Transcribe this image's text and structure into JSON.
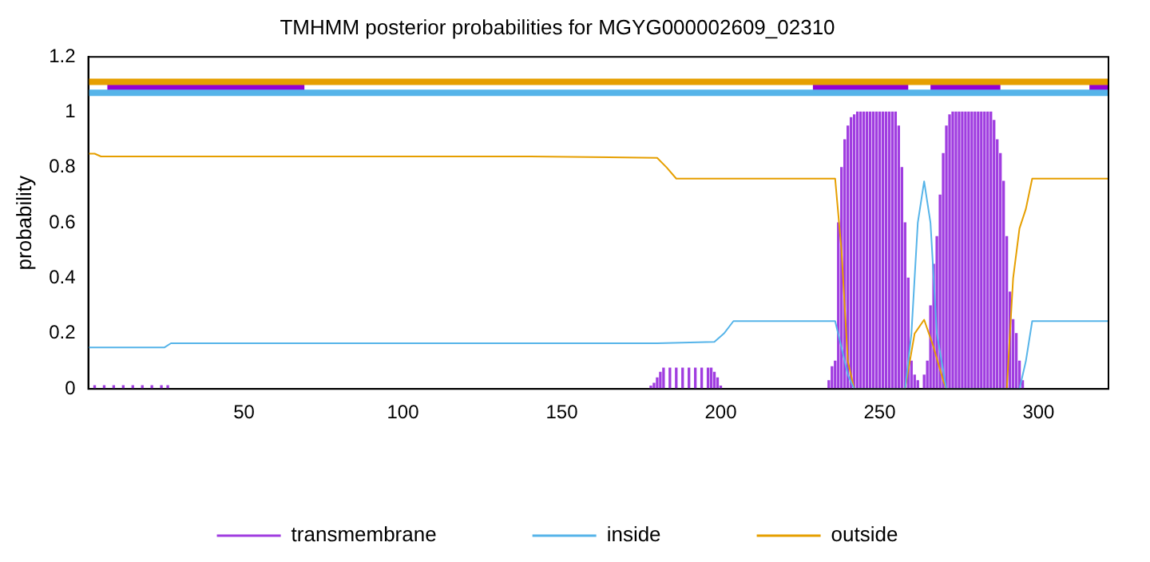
{
  "chart_data": {
    "type": "line",
    "title": "TMHMM posterior probabilities for MGYG000002609_02310",
    "ylabel": "probability",
    "xlim": [
      1,
      322
    ],
    "ylim": [
      0,
      1.2
    ],
    "xticks": [
      50,
      100,
      150,
      200,
      250,
      300
    ],
    "yticks": [
      0,
      0.2,
      0.4,
      0.6,
      0.8,
      1,
      1.2
    ],
    "grid": false,
    "legend": "bottom",
    "marker": "none",
    "line_style": "solid",
    "series": [
      {
        "name": "transmembrane",
        "type": "bar",
        "color": "#a03de0",
        "x": [
          3,
          6,
          9,
          12,
          15,
          18,
          21,
          24,
          26,
          178,
          179,
          180,
          181,
          182,
          184,
          186,
          188,
          190,
          192,
          194,
          196,
          197,
          198,
          199,
          200,
          234,
          235,
          236,
          237,
          238,
          239,
          240,
          241,
          242,
          243,
          244,
          245,
          246,
          247,
          248,
          249,
          250,
          251,
          252,
          253,
          254,
          255,
          256,
          257,
          258,
          259,
          260,
          261,
          262,
          264,
          265,
          266,
          267,
          268,
          269,
          270,
          271,
          272,
          273,
          274,
          275,
          276,
          277,
          278,
          279,
          280,
          281,
          282,
          283,
          284,
          285,
          286,
          287,
          288,
          289,
          290,
          291,
          292,
          293,
          294,
          295
        ],
        "values": [
          0.012,
          0.012,
          0.012,
          0.012,
          0.012,
          0.012,
          0.012,
          0.012,
          0.012,
          0.01,
          0.02,
          0.04,
          0.06,
          0.075,
          0.075,
          0.075,
          0.075,
          0.075,
          0.075,
          0.075,
          0.075,
          0.075,
          0.06,
          0.04,
          0.01,
          0.03,
          0.08,
          0.1,
          0.6,
          0.8,
          0.9,
          0.95,
          0.98,
          0.99,
          1,
          1,
          1,
          1,
          1,
          1,
          1,
          1,
          1,
          1,
          1,
          1,
          1,
          0.95,
          0.8,
          0.6,
          0.4,
          0.1,
          0.05,
          0.03,
          0.05,
          0.1,
          0.3,
          0.45,
          0.55,
          0.7,
          0.85,
          0.95,
          0.99,
          1,
          1,
          1,
          1,
          1,
          1,
          1,
          1,
          1,
          1,
          1,
          1,
          1,
          0.97,
          0.9,
          0.85,
          0.75,
          0.55,
          0.35,
          0.25,
          0.2,
          0.1,
          0.03
        ]
      },
      {
        "name": "inside",
        "color": "#56b4e9",
        "x": [
          1,
          25,
          27,
          180,
          198,
          201,
          204,
          236,
          238,
          240,
          242,
          258,
          260,
          262,
          264,
          266,
          268,
          271,
          294,
          296,
          298,
          322
        ],
        "values": [
          0.15,
          0.15,
          0.165,
          0.165,
          0.17,
          0.2,
          0.245,
          0.245,
          0.15,
          0.05,
          0,
          0,
          0.2,
          0.6,
          0.75,
          0.6,
          0.2,
          0,
          0,
          0.1,
          0.245,
          0.245
        ]
      },
      {
        "name": "outside",
        "color": "#e69f00",
        "x": [
          1,
          3,
          5,
          140,
          180,
          183,
          186,
          236,
          238,
          240,
          242,
          258,
          261,
          264,
          267,
          270,
          271,
          290,
          292,
          294,
          296,
          298,
          322
        ],
        "values": [
          0.85,
          0.85,
          0.84,
          0.84,
          0.835,
          0.8,
          0.76,
          0.76,
          0.5,
          0.1,
          0,
          0,
          0.2,
          0.25,
          0.15,
          0.03,
          0,
          0,
          0.4,
          0.58,
          0.65,
          0.76,
          0.76
        ]
      },
      {
        "color": "#e69f00",
        "x": [
          1,
          322
        ],
        "values": [
          1.11,
          1.11
        ]
      },
      {
        "color": "#56b4e9",
        "x": [
          1,
          322
        ],
        "values": [
          1.07,
          1.07
        ]
      },
      {
        "color": "#9400d3",
        "x": [
          7,
          69,
          70,
          229,
          259,
          260,
          266,
          288,
          289,
          316,
          322
        ],
        "values": [
          1.09,
          1.09,
          null,
          1.09,
          1.09,
          null,
          1.09,
          1.09,
          null,
          1.09,
          1.09
        ]
      }
    ]
  }
}
